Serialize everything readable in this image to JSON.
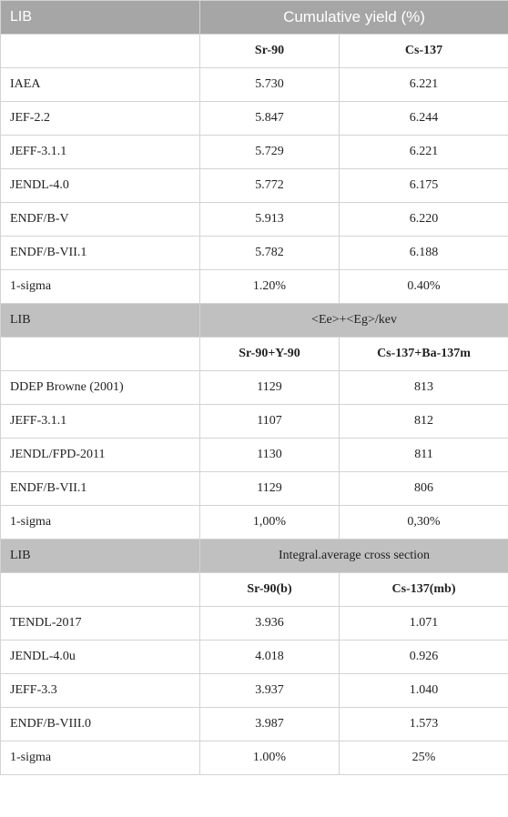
{
  "sections": [
    {
      "lib_label": "LIB",
      "title": "Cumulative yield (%)",
      "col1": "Sr-90",
      "col2": "Cs-137",
      "rows": [
        {
          "lib": "IAEA",
          "v1": "5.730",
          "v2": "6.221"
        },
        {
          "lib": "JEF-2.2",
          "v1": "5.847",
          "v2": "6.244"
        },
        {
          "lib": "JEFF-3.1.1",
          "v1": "5.729",
          "v2": "6.221"
        },
        {
          "lib": "JENDL-4.0",
          "v1": "5.772",
          "v2": "6.175"
        },
        {
          "lib": "ENDF/B-V",
          "v1": "5.913",
          "v2": "6.220"
        },
        {
          "lib": "ENDF/B-VII.1",
          "v1": "5.782",
          "v2": "6.188"
        },
        {
          "lib": "1-sigma",
          "v1": "1.20%",
          "v2": "0.40%"
        }
      ]
    },
    {
      "lib_label": "LIB",
      "title": "<Ee>+<Eg>/kev",
      "col1": "Sr-90+Y-90",
      "col2": "Cs-137+Ba-137m",
      "rows": [
        {
          "lib": "DDEP Browne (2001)",
          "v1": "1129",
          "v2": "813"
        },
        {
          "lib": "JEFF-3.1.1",
          "v1": "1107",
          "v2": "812"
        },
        {
          "lib": "JENDL/FPD-2011",
          "v1": "1130",
          "v2": "811"
        },
        {
          "lib": "ENDF/B-VII.1",
          "v1": "1129",
          "v2": "806"
        },
        {
          "lib": "1-sigma",
          "v1": "1,00%",
          "v2": "0,30%"
        }
      ]
    },
    {
      "lib_label": "LIB",
      "title": "Integral.average cross section",
      "col1": "Sr-90(b)",
      "col2": "Cs-137(mb)",
      "rows": [
        {
          "lib": "TENDL-2017",
          "v1": "3.936",
          "v2": "1.071"
        },
        {
          "lib": "JENDL-4.0u",
          "v1": "4.018",
          "v2": "0.926"
        },
        {
          "lib": "JEFF-3.3",
          "v1": "3.937",
          "v2": "1.040"
        },
        {
          "lib": "ENDF/B-VIII.0",
          "v1": "3.987",
          "v2": "1.573"
        },
        {
          "lib": "1-sigma",
          "v1": "1.00%",
          "v2": "25%"
        }
      ]
    }
  ]
}
